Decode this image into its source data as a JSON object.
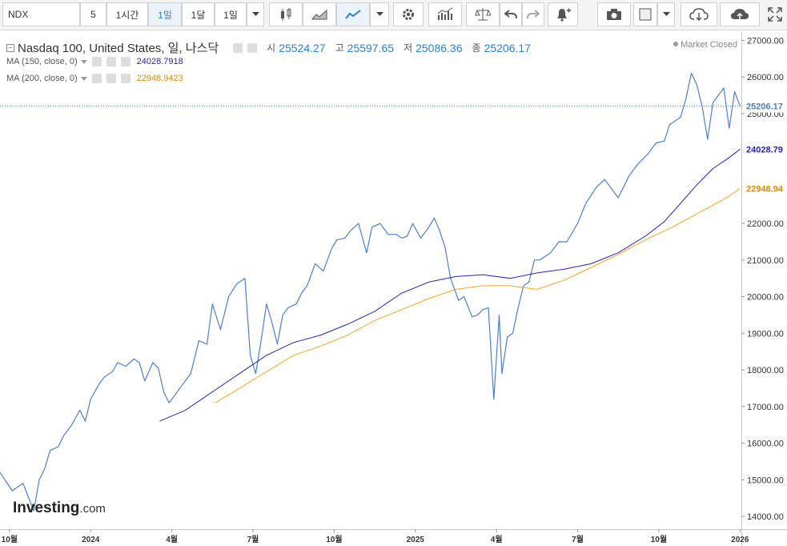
{
  "toolbar": {
    "symbol": "NDX",
    "interval_value": "5",
    "btn_1h": "1시간",
    "btn_1d": "1일",
    "btn_1m": "1달",
    "btn_period": "1일"
  },
  "legend": {
    "title": "Nasdaq 100, United States, 일, 나스닥",
    "open_k": "시",
    "open_v": "25524.27",
    "high_k": "고",
    "high_v": "25597.65",
    "low_k": "저",
    "low_v": "25086.36",
    "close_k": "종",
    "close_v": "25206.17",
    "ma150_label": "MA (150, close, 0)",
    "ma150_value": "24028.7918",
    "ma200_label": "MA (200, close, 0)",
    "ma200_value": "22948.9423"
  },
  "status": "Market Closed",
  "brand": {
    "main": "Investing",
    "suffix": ".com"
  },
  "colors": {
    "price": "#4a7fd4",
    "ma150": "#2323c8",
    "ma200": "#f5a623",
    "accent": "#2a7fd4"
  },
  "chart_data": {
    "type": "line",
    "y_ticks": [
      14000,
      15000,
      16000,
      17000,
      18000,
      19000,
      20000,
      21000,
      22000,
      23000,
      24000,
      25000,
      26000,
      27000
    ],
    "y_tick_labels": [
      "14000.00",
      "15000.00",
      "16000.00",
      "17000.00",
      "18000.00",
      "19000.00",
      "20000.00",
      "21000.00",
      "22000.00",
      "23000.00",
      "24000.00",
      "25000.00",
      "26000.00",
      "27000.00"
    ],
    "ylim": [
      13650,
      27250
    ],
    "x_ticks": [
      {
        "label": "10월",
        "t": 0.0
      },
      {
        "label": "2024",
        "t": 3.0
      },
      {
        "label": "4월",
        "t": 6.0
      },
      {
        "label": "7월",
        "t": 9.0
      },
      {
        "label": "10월",
        "t": 12.0
      },
      {
        "label": "2025",
        "t": 15.0
      },
      {
        "label": "4월",
        "t": 18.0
      },
      {
        "label": "7월",
        "t": 21.0
      },
      {
        "label": "10월",
        "t": 24.0
      },
      {
        "label": "2026",
        "t": 27.0
      }
    ],
    "xlim": [
      -0.35,
      27.05
    ],
    "price_labels": [
      {
        "value": 25206.17,
        "text": "25206.17",
        "series": "price"
      },
      {
        "value": 24028.79,
        "text": "24028.79",
        "series": "ma150"
      },
      {
        "value": 22948.94,
        "text": "22948.94",
        "series": "ma200"
      }
    ],
    "series": [
      {
        "id": "price",
        "x": [
          -0.35,
          0.1,
          0.5,
          0.9,
          1.1,
          1.3,
          1.5,
          1.8,
          2.0,
          2.3,
          2.6,
          2.8,
          3.0,
          3.3,
          3.5,
          3.8,
          4.0,
          4.3,
          4.6,
          4.8,
          5.0,
          5.3,
          5.5,
          5.7,
          5.9,
          6.1,
          6.4,
          6.7,
          7.0,
          7.3,
          7.5,
          7.8,
          8.1,
          8.4,
          8.7,
          8.9,
          9.1,
          9.3,
          9.5,
          9.7,
          9.9,
          10.1,
          10.3,
          10.6,
          10.8,
          11.0,
          11.3,
          11.6,
          11.9,
          12.1,
          12.4,
          12.6,
          12.9,
          13.2,
          13.4,
          13.7,
          14.0,
          14.3,
          14.5,
          14.7,
          14.9,
          15.2,
          15.5,
          15.7,
          15.9,
          16.1,
          16.3,
          16.6,
          16.8,
          17.1,
          17.3,
          17.5,
          17.7,
          17.9,
          18.1,
          18.2,
          18.4,
          18.6,
          18.8,
          19.0,
          19.2,
          19.4,
          19.6,
          20.0,
          20.3,
          20.6,
          21.0,
          21.3,
          21.7,
          22.0,
          22.5,
          22.9,
          23.2,
          23.6,
          23.9,
          24.2,
          24.4,
          24.6,
          24.8,
          25.0,
          25.2,
          25.4,
          25.6,
          25.8,
          26.0,
          26.2,
          26.4,
          26.6,
          26.8,
          27.0
        ],
        "values": [
          15200,
          14700,
          14900,
          14150,
          15000,
          15300,
          15800,
          15900,
          16200,
          16500,
          16900,
          16600,
          17200,
          17600,
          17800,
          17950,
          18200,
          18100,
          18300,
          18200,
          17700,
          18200,
          18050,
          17400,
          17100,
          17300,
          17600,
          17900,
          18800,
          18700,
          19800,
          19100,
          20000,
          20350,
          20500,
          18400,
          17900,
          18800,
          19800,
          19300,
          18700,
          19500,
          19700,
          19800,
          20100,
          20300,
          20900,
          20700,
          21300,
          21550,
          21600,
          21800,
          22000,
          21200,
          21900,
          22000,
          21700,
          21700,
          21600,
          21650,
          22000,
          21600,
          21900,
          22150,
          21800,
          21350,
          20500,
          19900,
          20000,
          19450,
          19500,
          19650,
          19700,
          17200,
          19500,
          17900,
          18900,
          19000,
          19700,
          20300,
          20400,
          21000,
          21000,
          21200,
          21500,
          21500,
          22000,
          22550,
          23000,
          23200,
          22700,
          23300,
          23600,
          23900,
          24200,
          24250,
          24700,
          24800,
          24900,
          25400,
          26100,
          25800,
          25200,
          24300,
          25300,
          25500,
          25700,
          24600,
          25600,
          25206
        ]
      },
      {
        "id": "ma150",
        "x": [
          5.55,
          6.5,
          7.5,
          8.5,
          9.5,
          10.5,
          11.5,
          12.5,
          13.5,
          14.5,
          15.5,
          16.5,
          17.5,
          18.5,
          19.5,
          20.5,
          21.5,
          22.5,
          23.5,
          24.2,
          24.8,
          25.4,
          26.0,
          26.6,
          27.0
        ],
        "values": [
          16600,
          16900,
          17400,
          17900,
          18400,
          18750,
          18950,
          19250,
          19600,
          20100,
          20400,
          20550,
          20600,
          20500,
          20650,
          20750,
          20900,
          21200,
          21650,
          22050,
          22550,
          23050,
          23500,
          23800,
          24028.79
        ]
      },
      {
        "id": "ma200",
        "x": [
          7.6,
          8.5,
          9.5,
          10.5,
          11.5,
          12.5,
          13.5,
          14.5,
          15.5,
          16.5,
          17.5,
          18.5,
          19.5,
          20.5,
          21.5,
          22.5,
          23.5,
          24.5,
          25.5,
          26.5,
          27.0
        ],
        "values": [
          17100,
          17500,
          17950,
          18400,
          18650,
          18950,
          19350,
          19650,
          19950,
          20200,
          20300,
          20300,
          20200,
          20450,
          20800,
          21150,
          21550,
          21900,
          22300,
          22700,
          22948.94
        ]
      }
    ]
  }
}
